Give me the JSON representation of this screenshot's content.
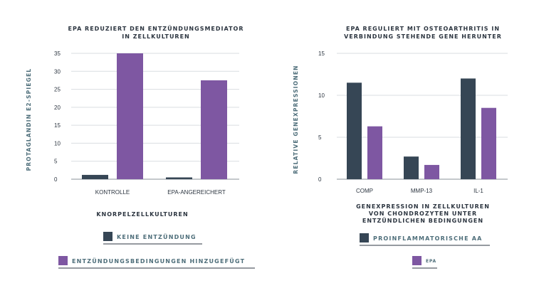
{
  "chart_data": [
    {
      "type": "bar",
      "title_lines": [
        "EPA REDUZIERT DEN ENTZÜNDUNGSMEDIATOR",
        "IN ZELLKULTUREN"
      ],
      "ylabel": "PROTAGLANDIN E2-SPIEGEL",
      "xlabel": "KNORPELZELLKULTUREN",
      "categories": [
        "KONTROLLE",
        "EPA-ANGEREICHERT"
      ],
      "ylim": [
        0,
        35
      ],
      "yticks": [
        "0",
        "5",
        "10",
        "15",
        "20",
        "25",
        "30",
        "35"
      ],
      "grid": true,
      "series": [
        {
          "name": "KEINE ENTZÜNDUNG",
          "color": "#364655",
          "values": [
            1.2,
            0.5
          ]
        },
        {
          "name": "ENTZÜNDUNGSBEDINGUNGEN HINZUGEFÜGT",
          "color": "#7e57a2",
          "values": [
            35,
            27.5
          ]
        }
      ]
    },
    {
      "type": "bar",
      "title_lines": [
        "EPA REGULIERT MIT OSTEOARTHRITIS IN",
        "VERBINDUNG STEHENDE GENE HERUNTER"
      ],
      "ylabel": "RELATIVE GENEXPRESSIONEN",
      "xlabel_lines": [
        "GENEXPRESSION IN ZELLKULTUREN",
        "VON CHONDROZYTEN UNTER",
        "ENTZÜNDLICHEN BEDINGUNGEN"
      ],
      "categories": [
        "COMP",
        "MMP-13",
        "IL-1"
      ],
      "ylim": [
        0,
        15
      ],
      "yticks": [
        "0",
        "5",
        "10",
        "15"
      ],
      "grid": true,
      "series": [
        {
          "name": "PROINFLAMMATORISCHE AA",
          "color": "#364655",
          "values": [
            11.5,
            2.7,
            12
          ]
        },
        {
          "name": "EPA",
          "color": "#7e57a2",
          "values": [
            6.3,
            1.7,
            8.5
          ]
        }
      ]
    }
  ]
}
